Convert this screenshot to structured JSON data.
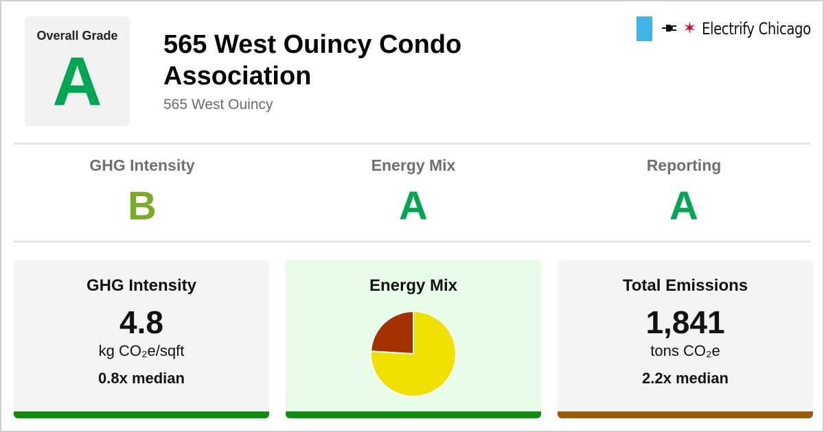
{
  "header": {
    "overall_grade_label": "Overall Grade",
    "overall_grade": "A",
    "overall_grade_color": "#00a651",
    "building_name": "565 West Ouincy Condo Association",
    "address": "565 West Ouincy"
  },
  "brand": {
    "name": "Electrify Chicago",
    "flag_color": "#41b6e6",
    "star_color": "#e4002b",
    "icons": [
      "plug-icon",
      "star-icon"
    ]
  },
  "sub_grades": [
    {
      "label": "GHG Intensity",
      "grade": "B",
      "color": "#7aaa2a"
    },
    {
      "label": "Energy Mix",
      "grade": "A",
      "color": "#00a651"
    },
    {
      "label": "Reporting",
      "grade": "A",
      "color": "#00a651"
    }
  ],
  "cards": {
    "ghg_intensity": {
      "title": "GHG Intensity",
      "value": "4.8",
      "unit": "kg CO₂e/sqft",
      "median": "0.8x median",
      "background": "#f4f4f4",
      "bar_color": "#118c11"
    },
    "energy_mix": {
      "title": "Energy Mix",
      "background": "#e8fde8",
      "bar_color": "#118c11"
    },
    "total_emissions": {
      "title": "Total Emissions",
      "value": "1,841",
      "unit": "tons CO₂e",
      "median": "2.2x median",
      "background": "#f4f4f4",
      "bar_color": "#9a5b0a"
    }
  },
  "chart_data": {
    "type": "pie",
    "title": "",
    "slices": [
      {
        "value": 76,
        "color": "#f0e000"
      },
      {
        "value": 24,
        "color": "#a33200"
      }
    ]
  }
}
